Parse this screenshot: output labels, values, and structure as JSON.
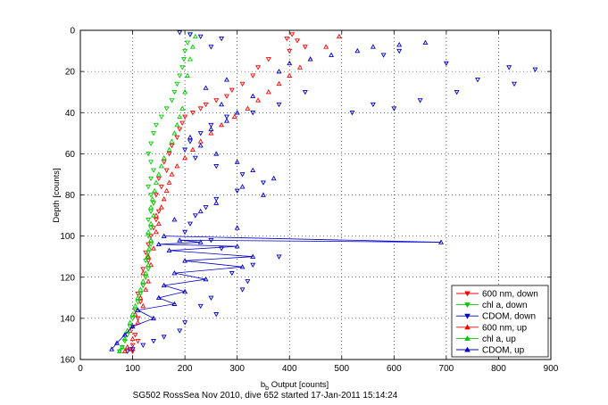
{
  "caption": "SG502 RossSea Nov 2010, dive 652 started 17-Jan-2011 15:14:24",
  "chart_data": {
    "type": "scatter",
    "xlabel_main": "b",
    "xlabel_sub": "b",
    "xlabel_rest": " Output [counts]",
    "ylabel": "Depth [counts]",
    "xlim": [
      0,
      900
    ],
    "ylim": [
      0,
      160
    ],
    "y_reversed": true,
    "grid": true,
    "grid_style": "dotted",
    "legend_position": "bottom-right",
    "x_ticks": [
      0,
      100,
      200,
      300,
      400,
      500,
      600,
      700,
      800,
      900
    ],
    "y_ticks": [
      0,
      20,
      40,
      60,
      80,
      100,
      120,
      140,
      160
    ],
    "series": [
      {
        "name": "600 nm, down",
        "color": "#ff0000",
        "marker": "triangle-down",
        "x": [
          405,
          415,
          430,
          395,
          400,
          360,
          340,
          330,
          310,
          290,
          280,
          260,
          240,
          230,
          215,
          200,
          195,
          190,
          185,
          175,
          170,
          160,
          165,
          150,
          155,
          145,
          140,
          150,
          145,
          140,
          135,
          130,
          125,
          130,
          120,
          125,
          120,
          110,
          115,
          105,
          110,
          100,
          105,
          110,
          100,
          95,
          100
        ],
        "y": [
          2,
          5,
          8,
          4,
          10,
          14,
          18,
          22,
          26,
          29,
          32,
          34,
          36,
          38,
          40,
          42,
          45,
          48,
          52,
          56,
          60,
          64,
          68,
          72,
          76,
          80,
          84,
          88,
          92,
          96,
          100,
          104,
          108,
          112,
          116,
          120,
          124,
          128,
          132,
          136,
          140,
          144,
          148,
          151,
          153,
          155,
          156
        ]
      },
      {
        "name": "chl a, down",
        "color": "#00cc00",
        "marker": "triangle-down",
        "x": [
          210,
          205,
          200,
          198,
          195,
          190,
          185,
          180,
          175,
          165,
          155,
          145,
          140,
          135,
          130,
          135,
          140,
          135,
          130,
          135,
          140,
          135,
          130,
          135,
          130,
          135,
          130,
          125,
          130,
          125,
          120,
          115,
          110,
          105,
          100,
          95,
          90,
          85,
          80,
          75
        ],
        "y": [
          2,
          6,
          10,
          14,
          18,
          22,
          26,
          30,
          34,
          38,
          42,
          46,
          50,
          55,
          60,
          64,
          68,
          72,
          76,
          80,
          84,
          88,
          92,
          96,
          100,
          104,
          108,
          112,
          116,
          120,
          124,
          128,
          132,
          136,
          140,
          144,
          148,
          151,
          154,
          156
        ]
      },
      {
        "name": "CDOM, down",
        "color": "#0000cc",
        "marker": "triangle-down",
        "x": [
          190,
          210,
          230,
          270,
          250,
          580,
          610,
          700,
          820,
          870,
          830,
          760,
          720,
          650,
          600,
          560,
          520,
          430,
          380,
          330,
          280,
          250,
          230,
          210,
          200,
          220,
          260,
          310,
          350,
          300,
          260,
          240,
          220,
          210,
          200,
          250,
          270,
          380,
          330,
          290,
          320,
          310,
          250,
          230,
          260,
          200,
          190,
          160,
          140,
          120,
          100,
          90
        ],
        "y": [
          1,
          2,
          3,
          4,
          8,
          12,
          10,
          16,
          18,
          19,
          26,
          24,
          30,
          34,
          38,
          36,
          40,
          30,
          36,
          40,
          42,
          46,
          50,
          54,
          58,
          62,
          66,
          70,
          74,
          78,
          82,
          86,
          90,
          94,
          98,
          102,
          106,
          110,
          114,
          118,
          122,
          126,
          130,
          134,
          138,
          142,
          146,
          149,
          151,
          153,
          155,
          156
        ]
      },
      {
        "name": "600 nm, up",
        "color": "#ff0000",
        "marker": "triangle-up",
        "x": [
          85,
          90,
          100,
          95,
          110,
          105,
          120,
          115,
          125,
          130,
          120,
          135,
          130,
          140,
          135,
          145,
          150,
          145,
          155,
          160,
          165,
          170,
          175,
          185,
          200,
          215,
          230,
          250,
          270,
          295,
          320,
          340,
          360,
          380,
          400,
          420,
          440,
          470,
          495
        ],
        "y": [
          156,
          154,
          150,
          146,
          142,
          138,
          134,
          130,
          126,
          122,
          118,
          114,
          110,
          106,
          102,
          98,
          94,
          90,
          86,
          82,
          78,
          74,
          70,
          66,
          62,
          58,
          54,
          50,
          46,
          42,
          38,
          34,
          30,
          26,
          22,
          18,
          14,
          8,
          3
        ]
      },
      {
        "name": "chl a, up",
        "color": "#00cc00",
        "marker": "triangle-up",
        "x": [
          75,
          80,
          85,
          90,
          95,
          100,
          105,
          110,
          115,
          120,
          125,
          130,
          128,
          132,
          135,
          130,
          135,
          140,
          135,
          138,
          142,
          145,
          150,
          155,
          160,
          170,
          175,
          180,
          185,
          190,
          195,
          200,
          205,
          210,
          215,
          220
        ],
        "y": [
          156,
          154,
          150,
          146,
          142,
          138,
          134,
          130,
          126,
          122,
          118,
          114,
          110,
          106,
          102,
          98,
          94,
          90,
          86,
          82,
          78,
          74,
          70,
          66,
          62,
          58,
          54,
          50,
          46,
          42,
          38,
          30,
          22,
          14,
          8,
          3
        ]
      },
      {
        "name": "CDOM, up",
        "color": "#0000cc",
        "marker": "triangle-up",
        "x": [
          60,
          70,
          85,
          100,
          140,
          110,
          180,
          150,
          200,
          160,
          240,
          180,
          310,
          200,
          330,
          170,
          300,
          150,
          230,
          190,
          690,
          160,
          300,
          180,
          230,
          260,
          350,
          310,
          370,
          330,
          300,
          260,
          230,
          210,
          250,
          280,
          300,
          270,
          330,
          240,
          280,
          380,
          400,
          440,
          480,
          530,
          560,
          610,
          660
        ],
        "y": [
          155,
          152,
          148,
          144,
          140,
          136,
          133,
          130,
          127,
          124,
          121,
          118,
          115,
          112,
          110,
          107,
          105,
          104,
          103,
          102,
          103,
          100,
          96,
          92,
          88,
          84,
          80,
          76,
          72,
          68,
          64,
          60,
          56,
          52,
          48,
          44,
          40,
          36,
          32,
          28,
          24,
          20,
          16,
          14,
          12,
          10,
          8,
          7,
          6
        ]
      }
    ]
  }
}
